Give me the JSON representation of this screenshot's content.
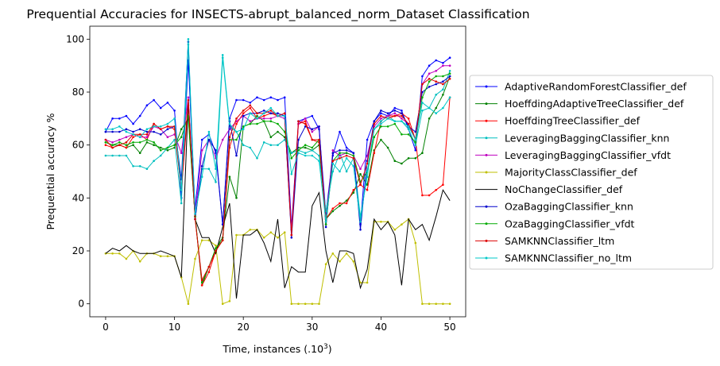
{
  "chart_data": {
    "type": "line",
    "title": "Prequential Accuracies for INSECTS-abrupt_balanced_norm_Dataset Classification",
    "xlabel": "Time, instances (.10",
    "xlabel_sup": "3",
    "xlabel_end": ")",
    "ylabel": "Prequential accuracy %",
    "xlim": [
      -2.3,
      52.3
    ],
    "ylim": [
      -4.9,
      104.9
    ],
    "xticks": [
      0,
      10,
      20,
      30,
      40,
      50
    ],
    "yticks": [
      0,
      20,
      40,
      60,
      80,
      100
    ],
    "legend_position": "right",
    "x": [
      0,
      1,
      2,
      3,
      4,
      5,
      6,
      7,
      8,
      9,
      10,
      11,
      12,
      13,
      14,
      15,
      16,
      17,
      18,
      19,
      20,
      21,
      22,
      23,
      24,
      25,
      26,
      27,
      28,
      29,
      30,
      31,
      32,
      33,
      34,
      35,
      36,
      37,
      38,
      39,
      40,
      41,
      42,
      43,
      44,
      45,
      46,
      47,
      48,
      49,
      50
    ],
    "series": [
      {
        "name": "AdaptiveRandomForestClassifier_def",
        "color": "#0000ff",
        "marker": "dot",
        "values": [
          65,
          70,
          70,
          71,
          68,
          71,
          75,
          77,
          74,
          76,
          73,
          40,
          92,
          36,
          62,
          64,
          57,
          30,
          70,
          77,
          77,
          76,
          78,
          77,
          78,
          77,
          78,
          29,
          69,
          70,
          71,
          66,
          34,
          56,
          65,
          59,
          57,
          30,
          62,
          69,
          72,
          71,
          74,
          73,
          66,
          58,
          86,
          90,
          92,
          91,
          93
        ]
      },
      {
        "name": "HoeffdingAdaptiveTreeClassifier_def",
        "color": "#008000",
        "marker": "dot",
        "values": [
          61,
          60,
          60,
          59,
          60,
          57,
          61,
          60,
          59,
          58,
          59,
          66,
          70,
          33,
          7,
          14,
          21,
          25,
          48,
          40,
          67,
          68,
          71,
          69,
          63,
          65,
          63,
          57,
          59,
          59,
          58,
          60,
          32,
          35,
          37,
          39,
          42,
          49,
          45,
          58,
          62,
          59,
          54,
          53,
          55,
          55,
          57,
          70,
          74,
          79,
          86
        ]
      },
      {
        "name": "HoeffdingTreeClassifier_def",
        "color": "#ff0000",
        "marker": "dot",
        "values": [
          60,
          59,
          60,
          59,
          63,
          64,
          62,
          68,
          66,
          67,
          66,
          43,
          75,
          33,
          7,
          12,
          20,
          24,
          59,
          68,
          72,
          74,
          70,
          71,
          72,
          71,
          71,
          26,
          68,
          69,
          62,
          61,
          32,
          36,
          38,
          38,
          43,
          45,
          43,
          57,
          69,
          71,
          71,
          72,
          70,
          62,
          41,
          41,
          43,
          45,
          78
        ]
      },
      {
        "name": "LeveragingBaggingClassifier_knn",
        "color": "#00bfbf",
        "marker": "dot",
        "values": [
          56,
          56,
          56,
          56,
          52,
          52,
          51,
          54,
          56,
          59,
          62,
          38,
          98,
          32,
          51,
          51,
          46,
          93,
          67,
          65,
          60,
          59,
          55,
          61,
          60,
          60,
          62,
          57,
          58,
          57,
          58,
          56,
          35,
          50,
          57,
          50,
          55,
          33,
          48,
          66,
          69,
          71,
          69,
          69,
          66,
          60,
          73,
          74,
          79,
          81,
          88
        ]
      },
      {
        "name": "LeveragingBaggingClassifier_vfdt",
        "color": "#bf00bf",
        "marker": "dot",
        "values": [
          62,
          61,
          62,
          63,
          64,
          63,
          63,
          67,
          66,
          63,
          64,
          57,
          78,
          33,
          58,
          62,
          55,
          62,
          66,
          69,
          71,
          69,
          70,
          70,
          70,
          71,
          70,
          28,
          68,
          70,
          65,
          67,
          30,
          58,
          56,
          57,
          56,
          51,
          56,
          67,
          70,
          71,
          72,
          70,
          68,
          62,
          83,
          87,
          88,
          90,
          90
        ]
      },
      {
        "name": "MajorityClassClassifier_def",
        "color": "#bfbf00",
        "marker": "dot",
        "values": [
          19,
          19,
          19,
          17,
          20,
          16,
          19,
          19,
          18,
          18,
          18,
          10,
          0,
          17,
          24,
          24,
          22,
          0,
          1,
          26,
          26,
          28,
          28,
          25,
          27,
          25,
          27,
          0,
          0,
          0,
          0,
          0,
          15,
          19,
          16,
          19,
          16,
          8,
          8,
          31,
          31,
          31,
          28,
          30,
          32,
          23,
          0,
          0,
          0,
          0,
          0
        ]
      },
      {
        "name": "NoChangeClassifier_def",
        "color": "#000000",
        "marker": "none",
        "values": [
          19,
          21,
          20,
          22,
          20,
          19,
          19,
          19,
          20,
          19,
          18,
          10,
          77,
          32,
          25,
          25,
          19,
          29,
          38,
          2,
          26,
          26,
          28,
          23,
          16,
          32,
          6,
          14,
          12,
          12,
          37,
          42,
          20,
          8,
          20,
          20,
          19,
          6,
          13,
          32,
          28,
          31,
          26,
          7,
          32,
          28,
          30,
          24,
          33,
          43,
          39
        ]
      },
      {
        "name": "OzaBaggingClassifier_knn",
        "color": "#0000cc",
        "marker": "dot",
        "values": [
          65,
          65,
          65,
          66,
          65,
          66,
          65,
          65,
          64,
          66,
          67,
          47,
          99,
          32,
          52,
          62,
          58,
          30,
          69,
          56,
          71,
          72,
          72,
          73,
          72,
          72,
          71,
          25,
          62,
          67,
          66,
          67,
          29,
          57,
          58,
          58,
          57,
          28,
          54,
          69,
          73,
          72,
          73,
          72,
          67,
          65,
          80,
          82,
          83,
          84,
          86
        ]
      },
      {
        "name": "OzaBaggingClassifier_vfdt",
        "color": "#00aa00",
        "marker": "dot",
        "values": [
          61,
          60,
          61,
          60,
          61,
          61,
          62,
          61,
          58,
          59,
          60,
          63,
          71,
          33,
          8,
          14,
          21,
          24,
          62,
          62,
          67,
          68,
          68,
          69,
          69,
          68,
          65,
          55,
          58,
          60,
          59,
          62,
          30,
          54,
          57,
          57,
          56,
          46,
          50,
          63,
          67,
          67,
          68,
          64,
          64,
          61,
          78,
          84,
          86,
          86,
          87
        ]
      },
      {
        "name": "SAMKNNClassifier_ltm",
        "color": "#dd0000",
        "marker": "dot",
        "values": [
          62,
          59,
          60,
          61,
          64,
          64,
          64,
          68,
          66,
          67,
          67,
          43,
          77,
          32,
          9,
          14,
          20,
          24,
          63,
          70,
          73,
          75,
          72,
          72,
          73,
          71,
          72,
          26,
          69,
          68,
          62,
          62,
          31,
          54,
          55,
          56,
          55,
          45,
          53,
          68,
          71,
          70,
          71,
          71,
          68,
          62,
          83,
          85,
          84,
          83,
          85
        ]
      },
      {
        "name": "SAMKNNClassifier_no_ltm",
        "color": "#00c8c8",
        "marker": "dot",
        "values": [
          66,
          66,
          67,
          65,
          64,
          63,
          66,
          67,
          67,
          68,
          70,
          43,
          100,
          34,
          48,
          65,
          51,
          94,
          68,
          65,
          66,
          72,
          70,
          72,
          74,
          71,
          71,
          49,
          57,
          56,
          56,
          54,
          31,
          53,
          50,
          55,
          52,
          31,
          50,
          66,
          68,
          70,
          69,
          69,
          67,
          62,
          76,
          74,
          72,
          74,
          78
        ]
      }
    ]
  }
}
